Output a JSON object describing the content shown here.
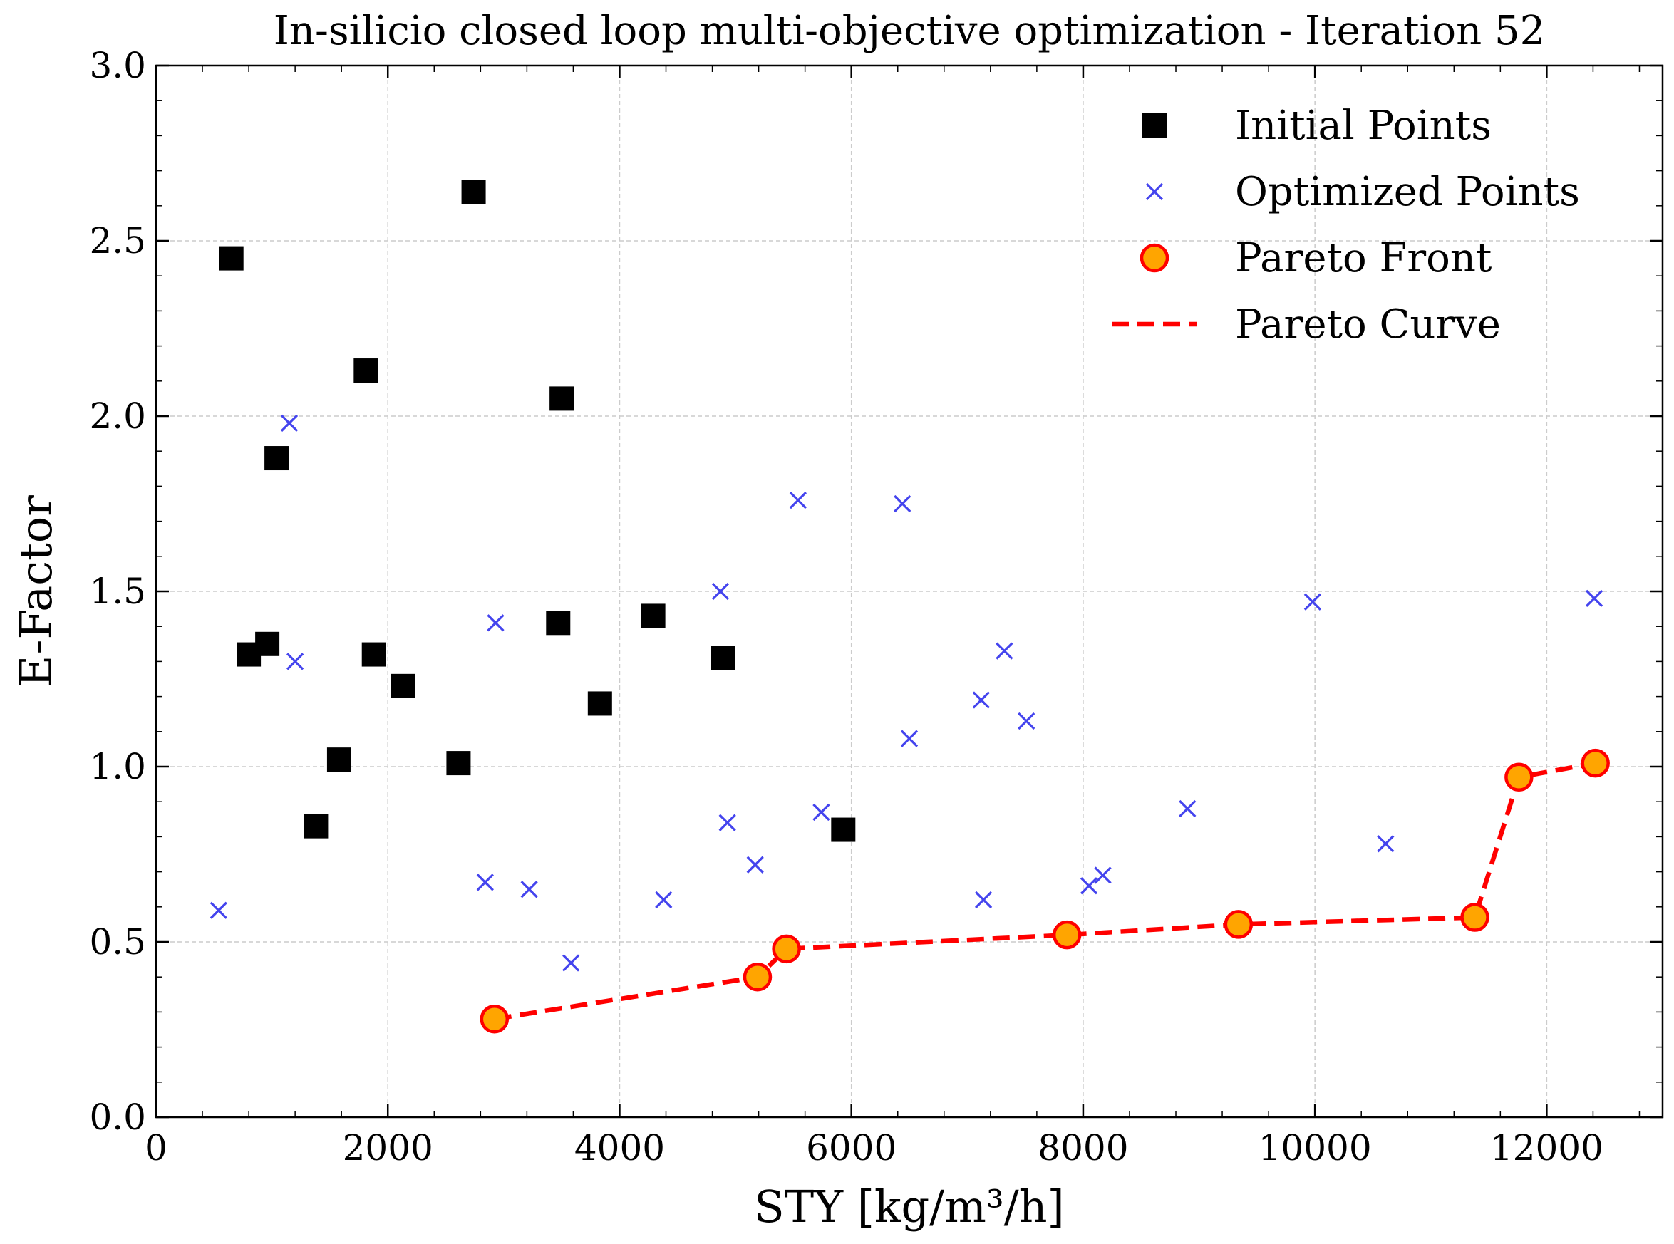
{
  "chart_data": {
    "type": "scatter",
    "title": "In-silicio closed loop multi-objective optimization - Iteration 52",
    "xlabel": "STY [kg/m³/h]",
    "ylabel": "E-Factor",
    "xlim": [
      0,
      13000
    ],
    "ylim": [
      0,
      3.0
    ],
    "grid": true,
    "legend_position": "top-right",
    "x_ticks": [
      0,
      2000,
      4000,
      6000,
      8000,
      10000,
      12000
    ],
    "x_tick_labels": [
      "0",
      "2000",
      "4000",
      "6000",
      "8000",
      "10000",
      "12000"
    ],
    "y_ticks": [
      0.0,
      0.5,
      1.0,
      1.5,
      2.0,
      2.5,
      3.0
    ],
    "y_tick_labels": [
      "0.0",
      "0.5",
      "1.0",
      "1.5",
      "2.0",
      "2.5",
      "3.0"
    ],
    "series": [
      {
        "name": "Initial Points",
        "marker": "square",
        "color": "#000000",
        "points": [
          [
            650,
            2.45
          ],
          [
            2740,
            2.64
          ],
          [
            1810,
            2.13
          ],
          [
            3500,
            2.05
          ],
          [
            1040,
            1.88
          ],
          [
            800,
            1.32
          ],
          [
            960,
            1.35
          ],
          [
            1880,
            1.32
          ],
          [
            2130,
            1.23
          ],
          [
            3470,
            1.41
          ],
          [
            4290,
            1.43
          ],
          [
            4890,
            1.31
          ],
          [
            3830,
            1.18
          ],
          [
            1580,
            1.02
          ],
          [
            2610,
            1.01
          ],
          [
            1380,
            0.83
          ],
          [
            5930,
            0.82
          ]
        ]
      },
      {
        "name": "Optimized Points",
        "marker": "x",
        "color": "#4444ee",
        "points": [
          [
            540,
            0.59
          ],
          [
            1150,
            1.98
          ],
          [
            1200,
            1.3
          ],
          [
            2930,
            1.41
          ],
          [
            2840,
            0.67
          ],
          [
            3220,
            0.65
          ],
          [
            3580,
            0.44
          ],
          [
            4380,
            0.62
          ],
          [
            4870,
            1.5
          ],
          [
            4930,
            0.84
          ],
          [
            5170,
            0.72
          ],
          [
            5540,
            1.76
          ],
          [
            5740,
            0.87
          ],
          [
            6440,
            1.75
          ],
          [
            6500,
            1.08
          ],
          [
            7120,
            1.19
          ],
          [
            7140,
            0.62
          ],
          [
            7320,
            1.33
          ],
          [
            7510,
            1.13
          ],
          [
            8050,
            0.66
          ],
          [
            8170,
            0.69
          ],
          [
            8900,
            0.88
          ],
          [
            9980,
            1.47
          ],
          [
            10610,
            0.78
          ],
          [
            12410,
            1.48
          ]
        ]
      },
      {
        "name": "Pareto Front",
        "marker": "circle",
        "color": "#ffa500",
        "edge_color": "#ff0000",
        "points": [
          [
            2920,
            0.28
          ],
          [
            5190,
            0.4
          ],
          [
            5440,
            0.48
          ],
          [
            7860,
            0.52
          ],
          [
            9340,
            0.55
          ],
          [
            11380,
            0.57
          ],
          [
            11760,
            0.97
          ],
          [
            12420,
            1.01
          ]
        ]
      },
      {
        "name": "Pareto Curve",
        "line_style": "dashed",
        "color": "#ff0000",
        "points": [
          [
            2920,
            0.28
          ],
          [
            5190,
            0.4
          ],
          [
            5440,
            0.48
          ],
          [
            7860,
            0.52
          ],
          [
            9340,
            0.55
          ],
          [
            11380,
            0.57
          ],
          [
            11760,
            0.97
          ],
          [
            12420,
            1.01
          ]
        ]
      }
    ]
  }
}
